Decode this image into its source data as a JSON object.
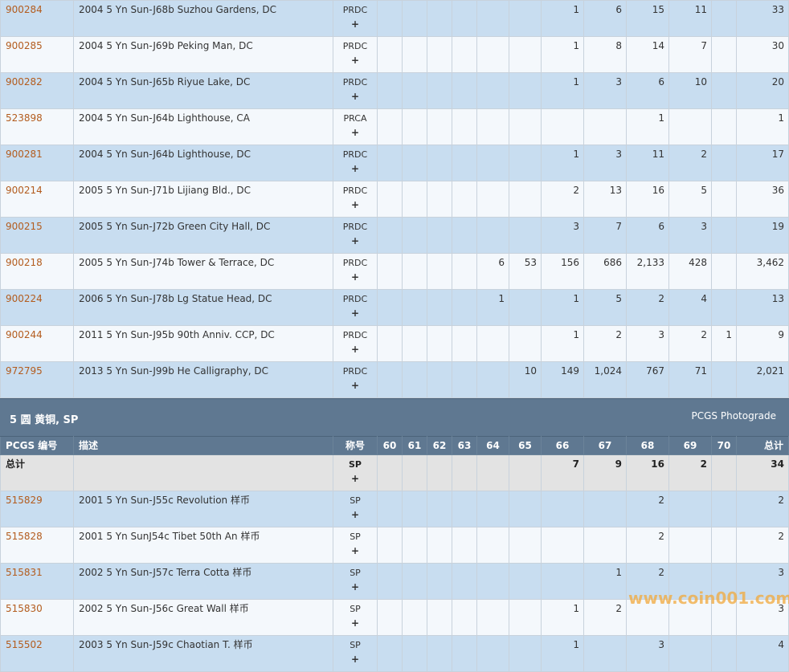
{
  "rows_top": [
    {
      "id": "900284",
      "desc": "2004 5 Yn Sun-J68b Suzhou Gardens, DC",
      "des": "PRDC",
      "plus": "+",
      "v": [
        "",
        "",
        "",
        "",
        "",
        "",
        "1",
        "6",
        "15",
        "11",
        "",
        "33"
      ]
    },
    {
      "id": "900285",
      "desc": "2004 5 Yn Sun-J69b Peking Man, DC",
      "des": "PRDC",
      "plus": "+",
      "v": [
        "",
        "",
        "",
        "",
        "",
        "",
        "1",
        "8",
        "14",
        "7",
        "",
        "30"
      ]
    },
    {
      "id": "900282",
      "desc": "2004 5 Yn Sun-J65b Riyue Lake, DC",
      "des": "PRDC",
      "plus": "+",
      "v": [
        "",
        "",
        "",
        "",
        "",
        "",
        "1",
        "3",
        "6",
        "10",
        "",
        "20"
      ]
    },
    {
      "id": "523898",
      "desc": "2004 5 Yn Sun-J64b Lighthouse, CA",
      "des": "PRCA",
      "plus": "+",
      "v": [
        "",
        "",
        "",
        "",
        "",
        "",
        "",
        "",
        "1",
        "",
        "",
        "1"
      ]
    },
    {
      "id": "900281",
      "desc": "2004 5 Yn Sun-J64b Lighthouse, DC",
      "des": "PRDC",
      "plus": "+",
      "v": [
        "",
        "",
        "",
        "",
        "",
        "",
        "1",
        "3",
        "11",
        "2",
        "",
        "17"
      ]
    },
    {
      "id": "900214",
      "desc": "2005 5 Yn Sun-J71b Lijiang Bld., DC",
      "des": "PRDC",
      "plus": "+",
      "v": [
        "",
        "",
        "",
        "",
        "",
        "",
        "2",
        "13",
        "16",
        "5",
        "",
        "36"
      ]
    },
    {
      "id": "900215",
      "desc": "2005 5 Yn Sun-J72b Green City Hall, DC",
      "des": "PRDC",
      "plus": "+",
      "v": [
        "",
        "",
        "",
        "",
        "",
        "",
        "3",
        "7",
        "6",
        "3",
        "",
        "19"
      ]
    },
    {
      "id": "900218",
      "desc": "2005 5 Yn Sun-J74b Tower & Terrace, DC",
      "des": "PRDC",
      "plus": "+",
      "v": [
        "",
        "",
        "",
        "",
        "6",
        "53",
        "156",
        "686",
        "2,133",
        "428",
        "",
        "3,462"
      ]
    },
    {
      "id": "900224",
      "desc": "2006 5 Yn Sun-J78b Lg Statue Head, DC",
      "des": "PRDC",
      "plus": "+",
      "v": [
        "",
        "",
        "",
        "",
        "1",
        "",
        "1",
        "5",
        "2",
        "4",
        "",
        "13"
      ]
    },
    {
      "id": "900244",
      "desc": "2011 5 Yn Sun-J95b 90th Anniv. CCP, DC",
      "des": "PRDC",
      "plus": "+",
      "v": [
        "",
        "",
        "",
        "",
        "",
        "",
        "1",
        "2",
        "3",
        "2",
        "1",
        "9"
      ]
    },
    {
      "id": "972795",
      "desc": "2013 5 Yn Sun-J99b He Calligraphy, DC",
      "des": "PRDC",
      "plus": "+",
      "v": [
        "",
        "",
        "",
        "",
        "",
        "10",
        "149",
        "1,024",
        "767",
        "71",
        "",
        "2,021"
      ]
    }
  ],
  "section": {
    "title": "5 圆 黄铜, SP",
    "link": "PCGS Photograde"
  },
  "columns": {
    "id": "PCGS 编号",
    "desc": "描述",
    "des": "称号",
    "grades": [
      "60",
      "61",
      "62",
      "63",
      "64",
      "65",
      "66",
      "67",
      "68",
      "69",
      "70"
    ],
    "total": "总计"
  },
  "total_row": {
    "label": "总计",
    "des": "SP",
    "plus": "+",
    "v": [
      "",
      "",
      "",
      "",
      "",
      "",
      "7",
      "9",
      "16",
      "2",
      "",
      "34"
    ]
  },
  "rows_bottom": [
    {
      "id": "515829",
      "desc": "2001 5 Yn Sun-J55c Revolution 样币",
      "des": "SP",
      "plus": "+",
      "v": [
        "",
        "",
        "",
        "",
        "",
        "",
        "",
        "",
        "2",
        "",
        "",
        "2"
      ]
    },
    {
      "id": "515828",
      "desc": "2001 5 Yn SunJ54c Tibet 50th An 样币",
      "des": "SP",
      "plus": "+",
      "v": [
        "",
        "",
        "",
        "",
        "",
        "",
        "",
        "",
        "2",
        "",
        "",
        "2"
      ]
    },
    {
      "id": "515831",
      "desc": "2002 5 Yn Sun-J57c Terra Cotta 样币",
      "des": "SP",
      "plus": "+",
      "v": [
        "",
        "",
        "",
        "",
        "",
        "",
        "",
        "1",
        "2",
        "",
        "",
        "3"
      ]
    },
    {
      "id": "515830",
      "desc": "2002 5 Yn Sun-J56c Great Wall 样币",
      "des": "SP",
      "plus": "+",
      "v": [
        "",
        "",
        "",
        "",
        "",
        "",
        "1",
        "2",
        "",
        "",
        "",
        "3"
      ]
    },
    {
      "id": "515502",
      "desc": "2003 5 Yn Sun-J59c Chaotian T. 样币",
      "des": "SP",
      "plus": "+",
      "v": [
        "",
        "",
        "",
        "",
        "",
        "",
        "1",
        "",
        "3",
        "",
        "",
        "4"
      ]
    }
  ],
  "watermark": "www.coin001.com"
}
